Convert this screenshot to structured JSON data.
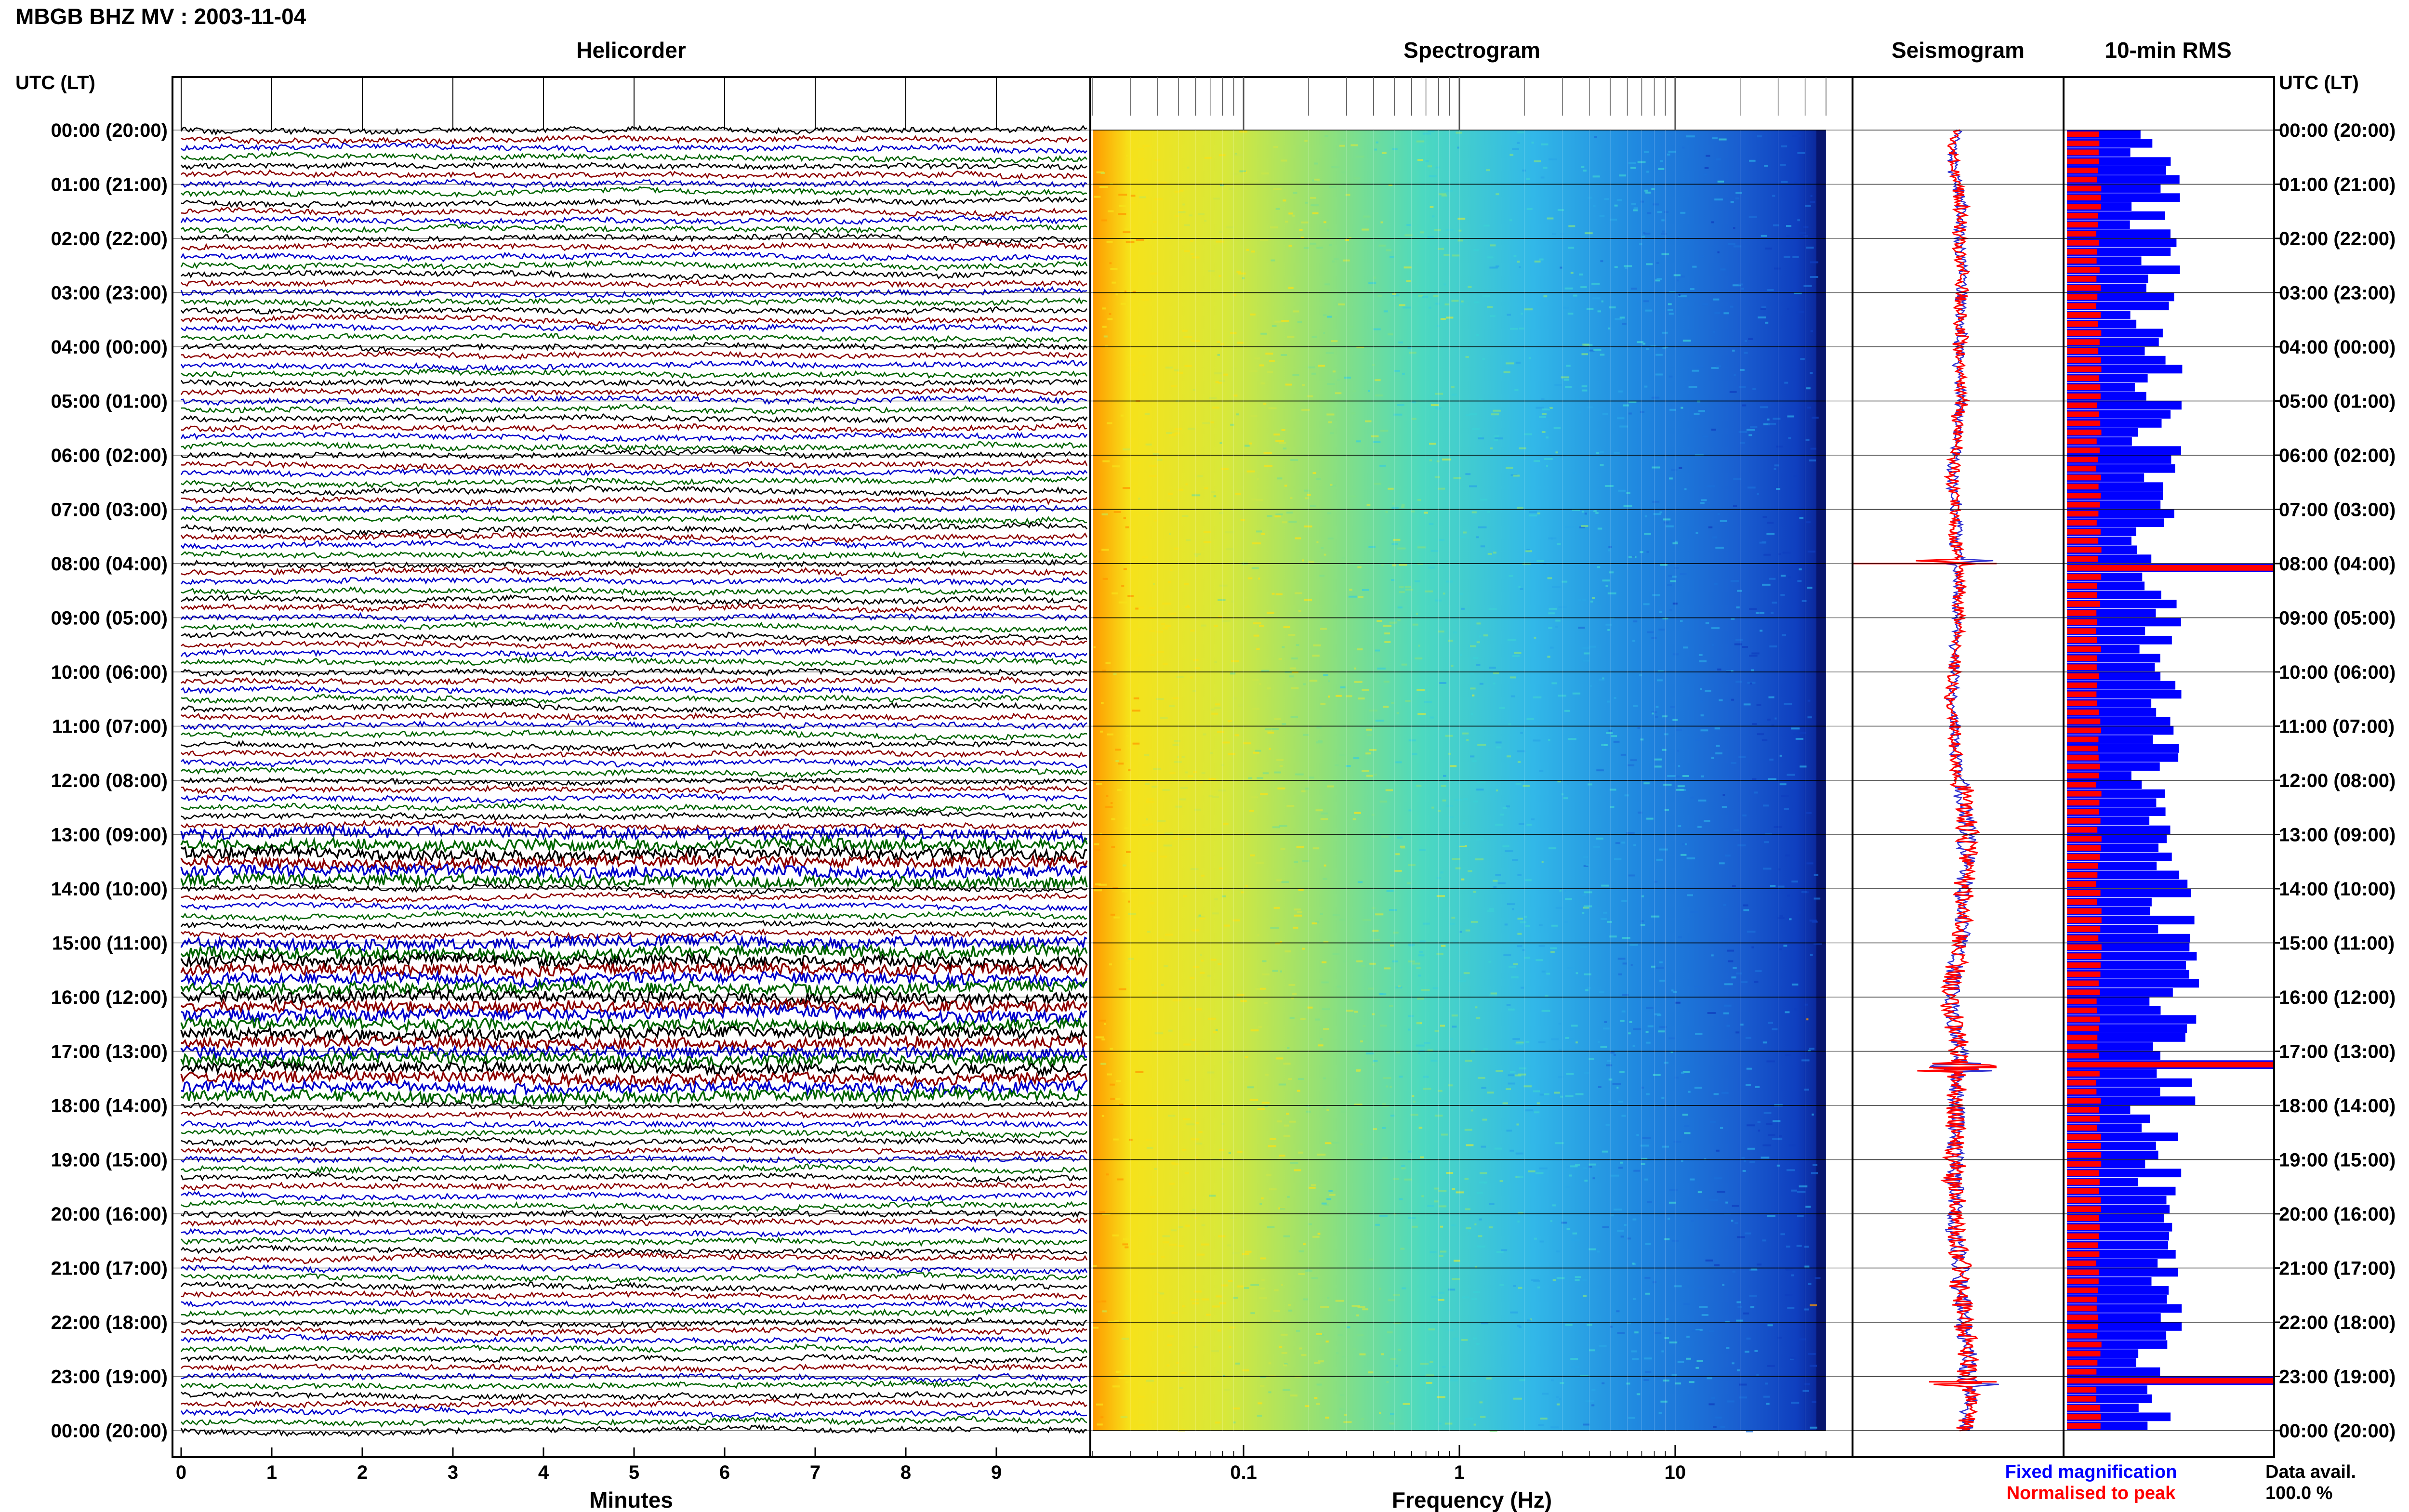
{
  "header": {
    "title": "MBGB BHZ MV : 2003-11-04",
    "left_axis_label": "UTC (LT)",
    "right_axis_label": "UTC (LT)"
  },
  "panels": {
    "helicorder": "Helicorder",
    "spectrogram": "Spectrogram",
    "seismogram": "Seismogram",
    "rms": "10-min RMS"
  },
  "axis_labels": {
    "minutes": "Minutes",
    "frequency": "Frequency (Hz)"
  },
  "legend": {
    "fixed_magnification": "Fixed magnification",
    "normalised_to_peak": "Normalised to peak",
    "data_avail_label": "Data avail.",
    "data_avail_value": "100.0 %"
  },
  "colors": {
    "fixed_magnification": "#0000ff",
    "normalised_to_peak": "#ff0000",
    "trace_cycle": [
      "#000000",
      "#8b0000",
      "#0000cd",
      "#006400"
    ]
  },
  "chart_data": [
    {
      "type": "line",
      "panel": "helicorder",
      "title": "Helicorder",
      "xlabel": "Minutes",
      "x_ticks": [
        "0",
        "1",
        "2",
        "3",
        "4",
        "5",
        "6",
        "7",
        "8",
        "9"
      ],
      "xlim": [
        0,
        10
      ],
      "row_labels": [
        "00:00 (20:00)",
        "01:00 (21:00)",
        "02:00 (22:00)",
        "03:00 (23:00)",
        "04:00 (00:00)",
        "05:00 (01:00)",
        "06:00 (02:00)",
        "07:00 (03:00)",
        "08:00 (04:00)",
        "09:00 (05:00)",
        "10:00 (06:00)",
        "11:00 (07:00)",
        "12:00 (08:00)",
        "13:00 (09:00)",
        "14:00 (10:00)",
        "15:00 (11:00)",
        "16:00 (12:00)",
        "17:00 (13:00)",
        "18:00 (14:00)",
        "19:00 (15:00)",
        "20:00 (16:00)",
        "21:00 (17:00)",
        "22:00 (18:00)",
        "23:00 (19:00)",
        "00:00 (20:00)"
      ],
      "traces_per_hour": 6,
      "noisy_hours": [
        13,
        15,
        16,
        17
      ]
    },
    {
      "type": "heatmap",
      "panel": "spectrogram",
      "title": "Spectrogram",
      "xlabel": "Frequency (Hz)",
      "x_scale": "log",
      "x_ticks": [
        "0.1",
        "1",
        "10"
      ],
      "xlim": [
        0.02,
        50
      ]
    },
    {
      "type": "line",
      "panel": "seismogram",
      "title": "Seismogram",
      "events_utc_hours": [
        8.0,
        17.3,
        23.1
      ]
    },
    {
      "type": "bar",
      "panel": "rms",
      "title": "10-min RMS",
      "series": [
        {
          "name": "Fixed magnification",
          "color": "#0000ff"
        },
        {
          "name": "Normalised to peak",
          "color": "#ff0000"
        }
      ],
      "peak_utc_hours": [
        8.0,
        17.1,
        23.0
      ]
    }
  ]
}
